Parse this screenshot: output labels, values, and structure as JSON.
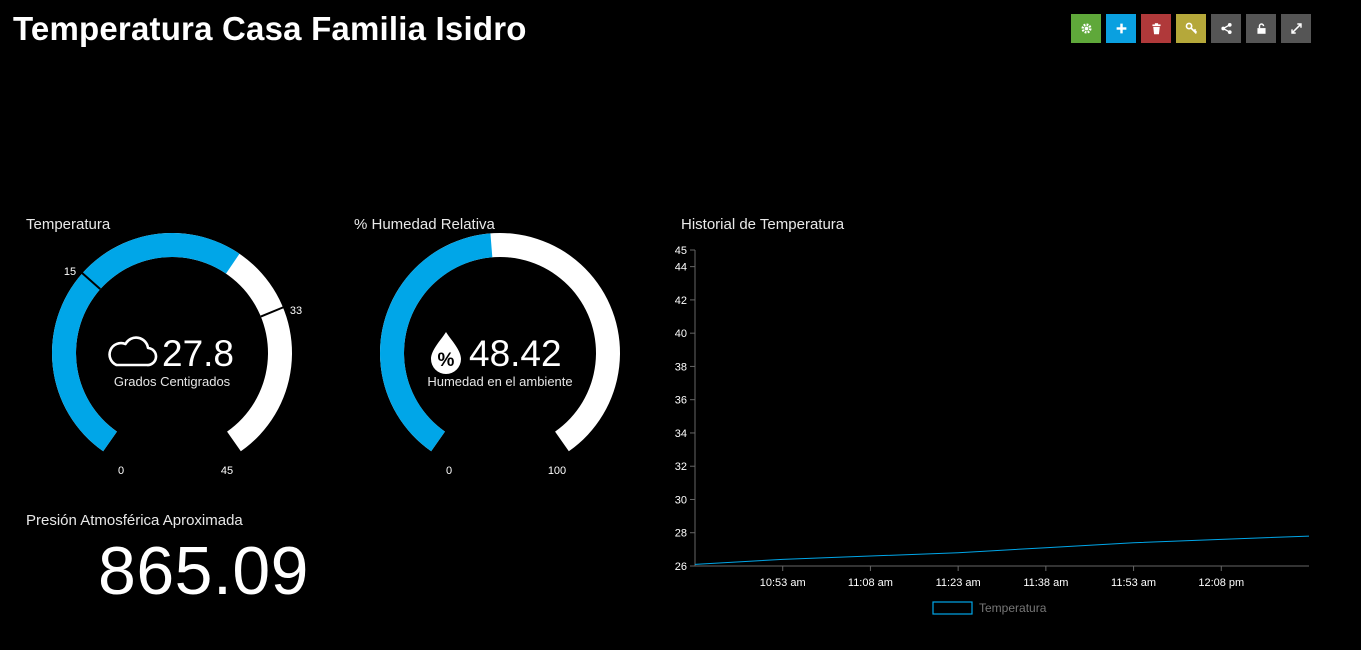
{
  "header": {
    "title": "Temperatura Casa Familia Isidro"
  },
  "toolbar": {
    "buttons": [
      {
        "name": "settings-button",
        "icon": "gear-icon",
        "color": "#5fa83a"
      },
      {
        "name": "add-button",
        "icon": "plus-icon",
        "color": "#0aa0e0"
      },
      {
        "name": "delete-button",
        "icon": "trash-icon",
        "color": "#b0393a"
      },
      {
        "name": "key-button",
        "icon": "key-icon",
        "color": "#b5a83a"
      },
      {
        "name": "share-button",
        "icon": "share-icon",
        "color": "#555555"
      },
      {
        "name": "unlock-button",
        "icon": "unlock-icon",
        "color": "#555555"
      },
      {
        "name": "fullscreen-button",
        "icon": "expand-icon",
        "color": "#555555"
      }
    ]
  },
  "temperature_gauge": {
    "title": "Temperatura",
    "value": "27.8",
    "unit": "Grados Centigrados",
    "icon": "cloud-icon",
    "min": "0",
    "max": "45",
    "threshold_low": "15",
    "threshold_high": "33",
    "fraction": 0.618,
    "accent": "#00a6e8"
  },
  "humidity_gauge": {
    "title": "% Humedad Relativa",
    "value": "48.42",
    "unit": "Humedad en el ambiente",
    "icon": "humidity-drop-icon",
    "min": "0",
    "max": "100",
    "fraction": 0.4842,
    "accent": "#00a6e8"
  },
  "pressure": {
    "title": "Presión Atmosférica Aproximada",
    "value": "865.09"
  },
  "history": {
    "title": "Historial de Temperatura",
    "chart_data": {
      "type": "line",
      "ylim": [
        26,
        45
      ],
      "yticks": [
        "45",
        "44",
        "42",
        "40",
        "38",
        "36",
        "34",
        "32",
        "30",
        "28",
        "26"
      ],
      "xticks": [
        "10:53 am",
        "11:08 am",
        "11:23 am",
        "11:38 am",
        "11:53 am",
        "12:08 pm"
      ],
      "series": [
        {
          "name": "Temperatura",
          "color": "#00a6e8",
          "x": [
            "10:38 am",
            "10:53 am",
            "11:08 am",
            "11:23 am",
            "11:38 am",
            "11:53 am",
            "12:08 pm",
            "12:20 pm"
          ],
          "values": [
            26.1,
            26.4,
            26.6,
            26.8,
            27.1,
            27.4,
            27.6,
            27.8
          ]
        }
      ]
    }
  }
}
